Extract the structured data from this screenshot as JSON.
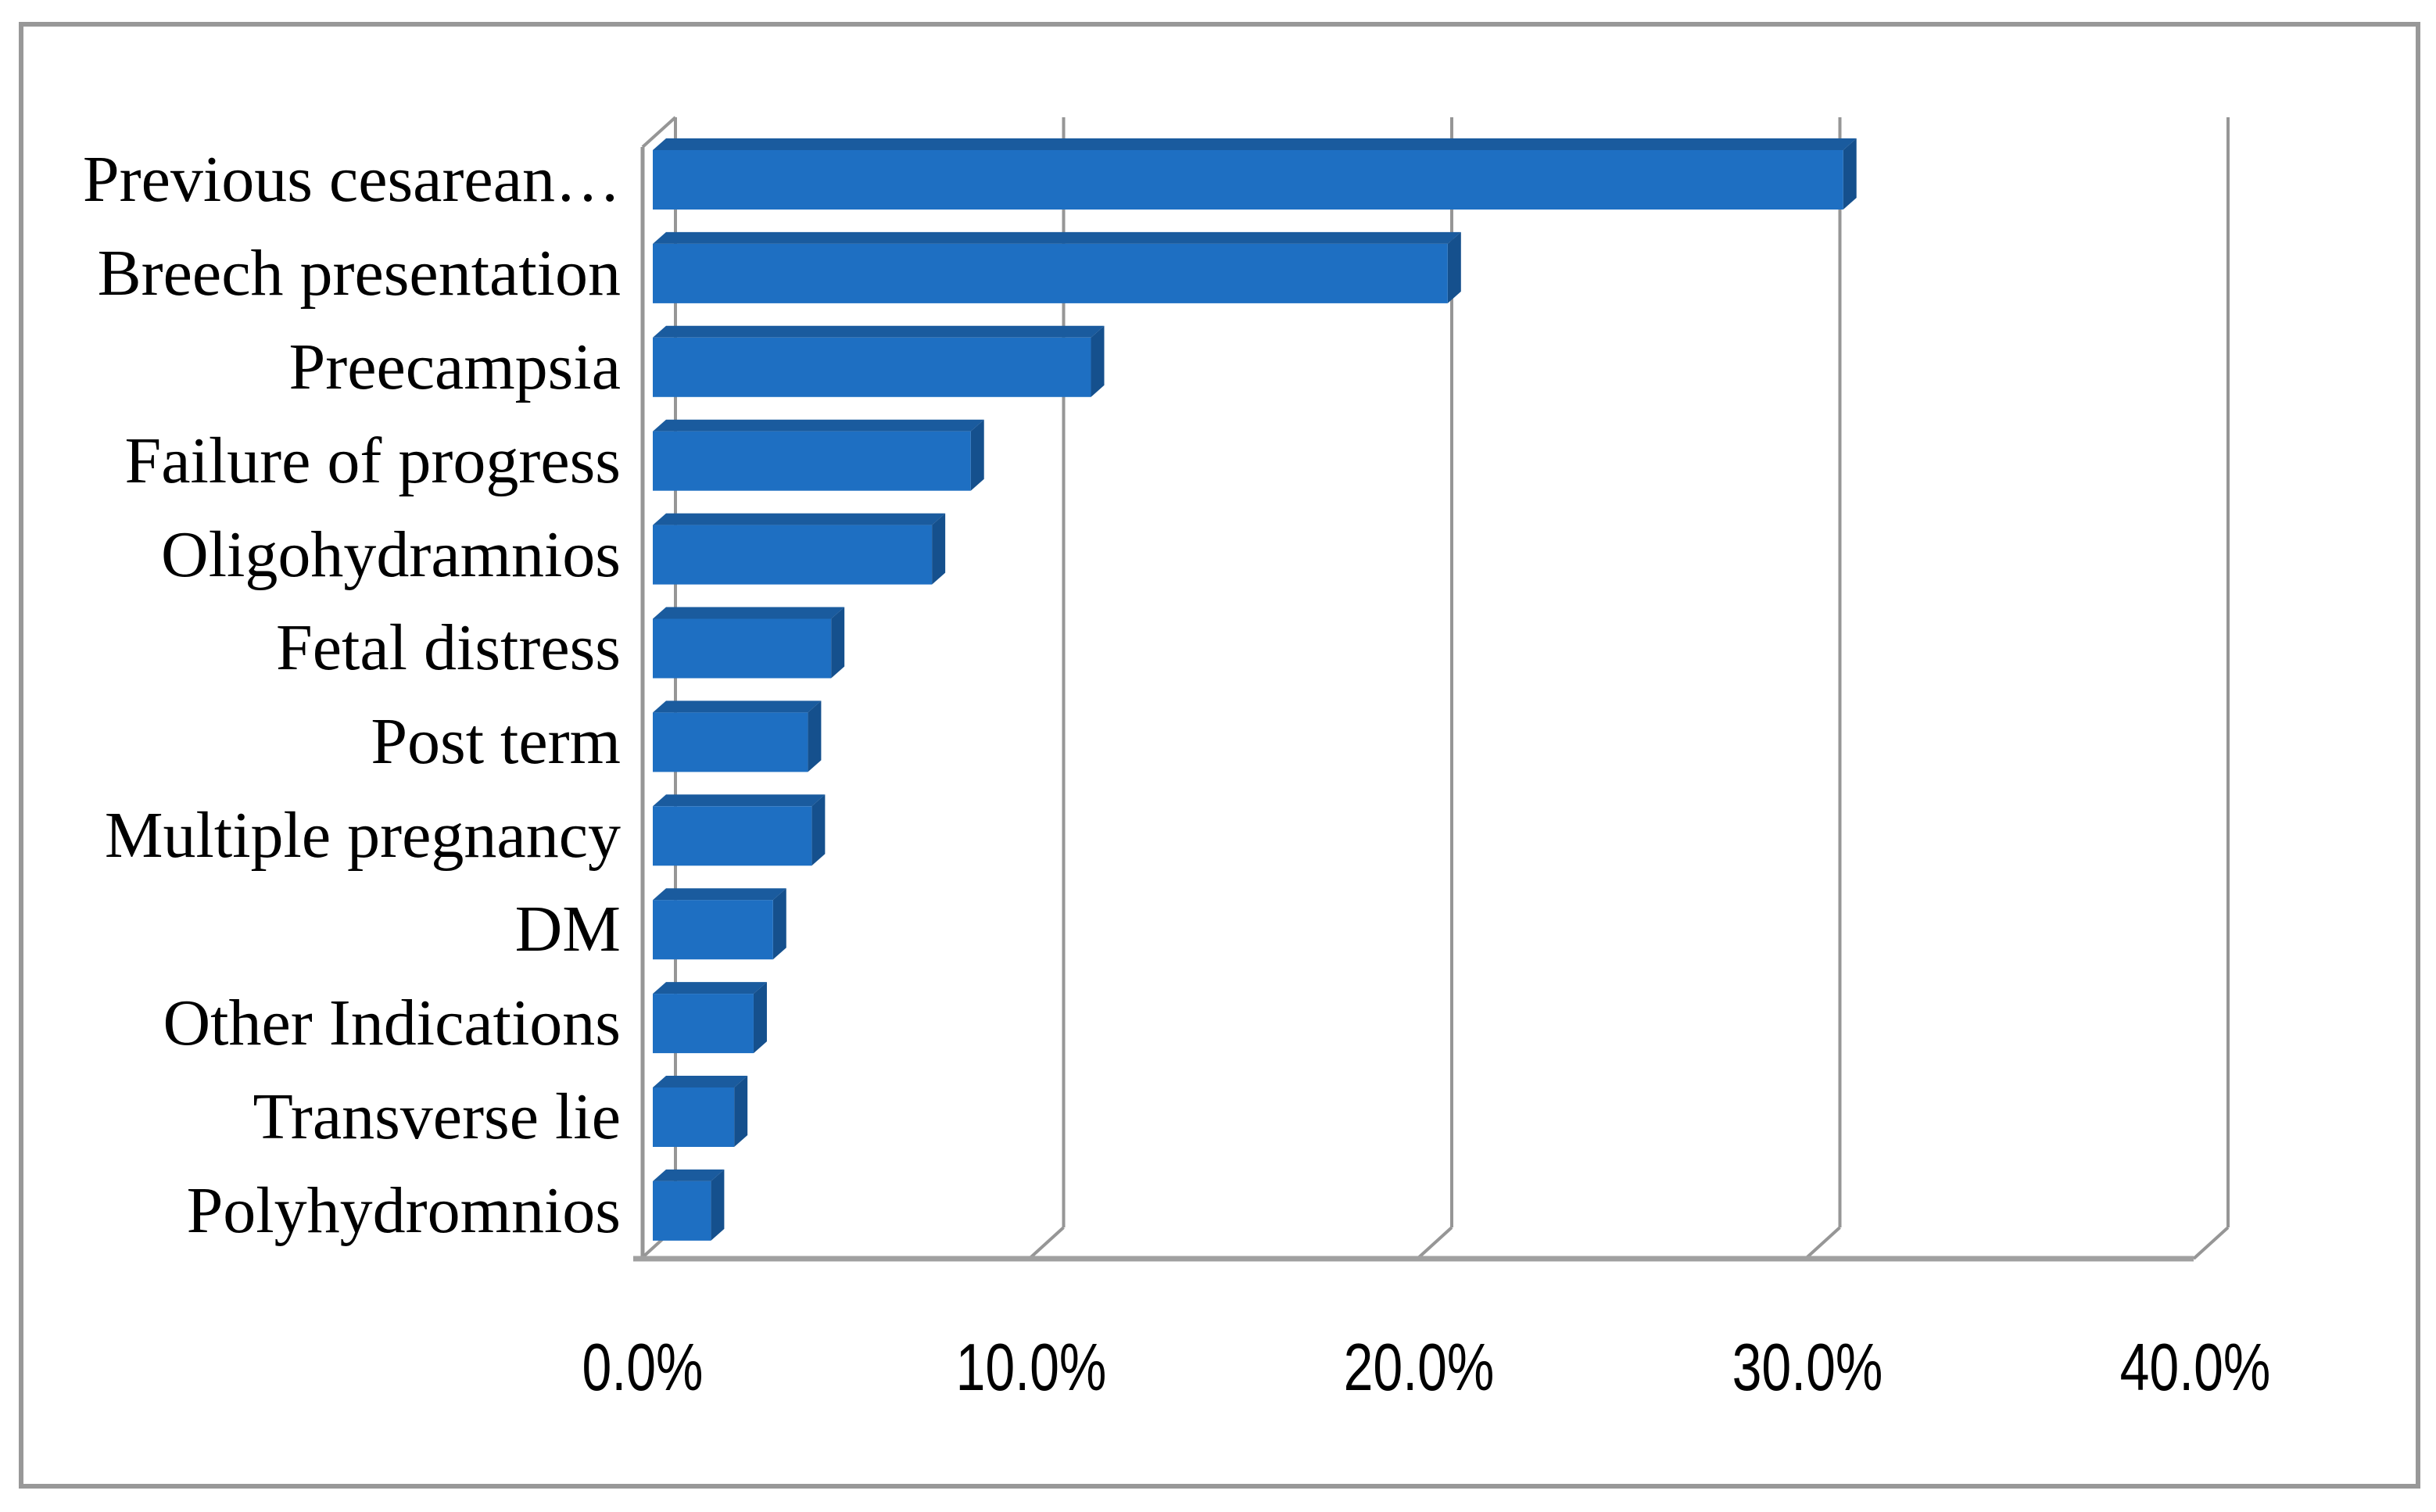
{
  "figure": {
    "background": "#ffffff",
    "border_color": "#989898"
  },
  "chart_data": {
    "type": "bar",
    "orientation": "horizontal",
    "effect": "3d",
    "title": "",
    "xlabel": "",
    "ylabel": "",
    "categories": [
      "Previous cesarean…",
      "Breech presentation",
      "Preecampsia",
      "Failure of progress",
      "Oligohydramnios",
      "Fetal distress",
      "Post term",
      "Multiple pregnancy",
      "DM",
      "Other Indications",
      "Transverse lie",
      "Polyhydromnios"
    ],
    "values": [
      30.7,
      20.5,
      11.3,
      8.2,
      7.2,
      4.6,
      4.0,
      4.1,
      3.1,
      2.6,
      2.1,
      1.5
    ],
    "unit": "%",
    "x_axis": {
      "min": 0,
      "max": 40,
      "tick_step": 10,
      "tick_labels": [
        "0.0%",
        "10.0%",
        "20.0%",
        "30.0%",
        "40.0%"
      ]
    },
    "gridlines": "vertical",
    "legend": "none",
    "colors": {
      "bar_front": "#1e6fc2",
      "bar_top": "#1a5b9e",
      "bar_side": "#15508d",
      "gridline": "#969696",
      "axis": "#a0a0a0",
      "text": "#000000"
    }
  }
}
